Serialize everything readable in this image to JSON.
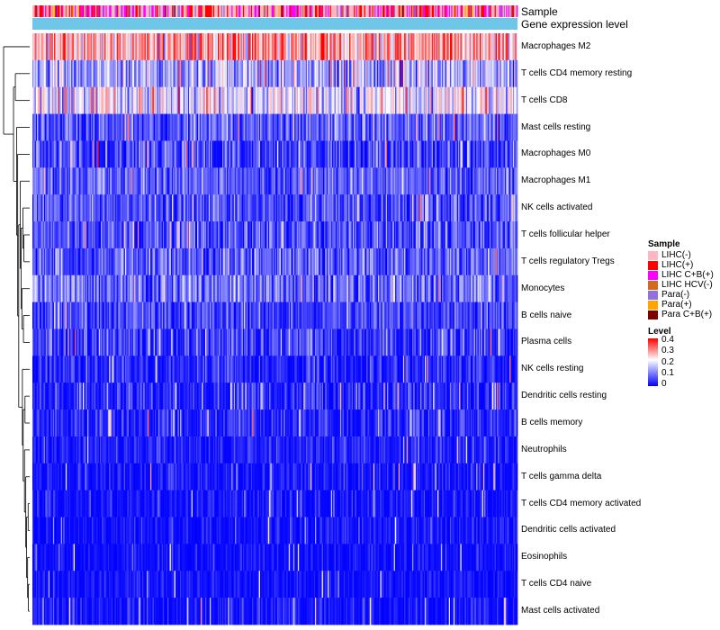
{
  "chart_data": {
    "type": "heatmap",
    "title": "",
    "column_annotations": [
      {
        "label": "Sample"
      },
      {
        "label": "Gene expression level"
      }
    ],
    "rows": [
      {
        "name": "Macrophages M2",
        "mean": 0.27,
        "sd": 0.08
      },
      {
        "name": "T cells CD4 memory resting",
        "mean": 0.13,
        "sd": 0.06
      },
      {
        "name": "T cells CD8",
        "mean": 0.18,
        "sd": 0.07
      },
      {
        "name": "Mast cells resting",
        "mean": 0.07,
        "sd": 0.05
      },
      {
        "name": "Macrophages M0",
        "mean": 0.05,
        "sd": 0.06
      },
      {
        "name": "Macrophages M1",
        "mean": 0.07,
        "sd": 0.04
      },
      {
        "name": "NK cells activated",
        "mean": 0.06,
        "sd": 0.05
      },
      {
        "name": "T cells follicular helper",
        "mean": 0.06,
        "sd": 0.05
      },
      {
        "name": "T cells regulatory  Tregs",
        "mean": 0.07,
        "sd": 0.05
      },
      {
        "name": "Monocytes",
        "mean": 0.08,
        "sd": 0.05
      },
      {
        "name": "B cells naive",
        "mean": 0.05,
        "sd": 0.04
      },
      {
        "name": "Plasma cells",
        "mean": 0.04,
        "sd": 0.05
      },
      {
        "name": "NK cells resting",
        "mean": 0.02,
        "sd": 0.04
      },
      {
        "name": "Dendritic cells resting",
        "mean": 0.03,
        "sd": 0.04
      },
      {
        "name": "B cells memory",
        "mean": 0.03,
        "sd": 0.04
      },
      {
        "name": "Neutrophils",
        "mean": 0.02,
        "sd": 0.03
      },
      {
        "name": "T cells gamma delta",
        "mean": 0.01,
        "sd": 0.03
      },
      {
        "name": "T cells CD4 memory activated",
        "mean": 0.01,
        "sd": 0.03
      },
      {
        "name": "Dendritic cells activated",
        "mean": 0.01,
        "sd": 0.03
      },
      {
        "name": "Eosinophils",
        "mean": 0.01,
        "sd": 0.02
      },
      {
        "name": "T cells CD4 naive",
        "mean": 0.01,
        "sd": 0.02
      },
      {
        "name": "Mast cells activated",
        "mean": 0.01,
        "sd": 0.03
      }
    ],
    "n_samples": 424,
    "sample_legend": {
      "title": "Sample",
      "items": [
        {
          "label": "LIHC(-)",
          "color": "#ffb6c1"
        },
        {
          "label": "LIHC(+)",
          "color": "#ff0000"
        },
        {
          "label": "LIHC C+B(+)",
          "color": "#ff00ff"
        },
        {
          "label": "LIHC HCV(-)",
          "color": "#d2691e"
        },
        {
          "label": "Para(-)",
          "color": "#9370db"
        },
        {
          "label": "Para(+)",
          "color": "#ffa500"
        },
        {
          "label": "Para C+B(+)",
          "color": "#800000"
        }
      ]
    },
    "sample_proportions": [
      0.42,
      0.22,
      0.2,
      0.03,
      0.08,
      0.03,
      0.02
    ],
    "expression_bar_color": "#6ec6e8",
    "level_legend": {
      "title": "Level",
      "ticks": [
        "0.4",
        "0.3",
        "0.2",
        "0.1",
        "0"
      ],
      "range": [
        0,
        0.4
      ],
      "colors": {
        "low": "#0000ff",
        "mid": "#ffffff",
        "high": "#ff0000"
      }
    }
  }
}
